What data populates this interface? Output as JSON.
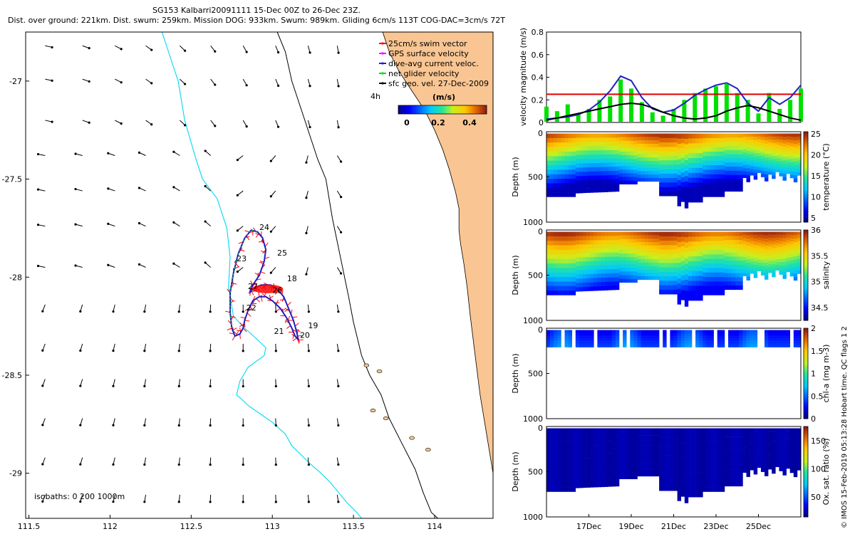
{
  "header": {
    "title1": "SG153 Kalbarri20091111 15-Dec 00Z to 26-Dec 23Z.",
    "title2": "Dist. over ground: 221km. Dist. swum: 259km. Mission DOG: 933km. Swum: 989km. Gliding 6cm/s 113T COG-DAC=3cm/s 72T"
  },
  "credit": "© IMOS 15-Feb-2019 05:13:28 Hobart time. QC flags 1  2",
  "colors": {
    "land": "#f9c592",
    "coast": "#000000",
    "isobath": "#00d8f0",
    "track": "#2020c0",
    "swim_vector": "#ff0000",
    "net_velocity": "#00e000",
    "gps": "#ff00ff",
    "sfc_geo": "#000000",
    "threshold": "#e00000"
  },
  "chart_data": [
    {
      "id": "map",
      "type": "scatter",
      "title": "",
      "xlim": [
        111.48,
        114.36
      ],
      "ylim": [
        -29.23,
        -26.75
      ],
      "xticks": [
        "111.5",
        "112",
        "112.5",
        "113",
        "113.5",
        "114"
      ],
      "yticks": [
        "-27",
        "-27.5",
        "-28",
        "-28.5",
        "-29"
      ],
      "legend": {
        "placement": "top-right",
        "entries": [
          "25cm/s swim vector",
          "GPS surface velocity",
          "dive-avg current veloc.",
          "net glider velocity",
          "sfc geo. vel. 27-Dec-2009"
        ],
        "colorbar_title": "(m/s)",
        "colorbar_ticks": [
          "0",
          "0.2",
          "0.4"
        ],
        "time_label": "4h"
      },
      "isobath_label": "isobaths: 0   200  1000m",
      "day_labels": [
        {
          "text": "24",
          "lon": 112.92,
          "lat": -27.76
        },
        {
          "text": "23",
          "lon": 112.78,
          "lat": -27.92
        },
        {
          "text": "25",
          "lon": 113.03,
          "lat": -27.89
        },
        {
          "text": "18",
          "lon": 113.09,
          "lat": -28.02
        },
        {
          "text": "27",
          "lon": 112.85,
          "lat": -28.06
        },
        {
          "text": "26",
          "lon": 113.0,
          "lat": -28.08
        },
        {
          "text": "22",
          "lon": 112.84,
          "lat": -28.17
        },
        {
          "text": "19",
          "lon": 113.22,
          "lat": -28.26
        },
        {
          "text": "21",
          "lon": 113.01,
          "lat": -28.29
        },
        {
          "text": "20",
          "lon": 113.17,
          "lat": -28.31
        }
      ],
      "track": {
        "lon": [
          113.16,
          113.14,
          113.12,
          113.09,
          113.05,
          113.0,
          112.96,
          112.92,
          112.88,
          112.85,
          112.83,
          112.82,
          112.8,
          112.77,
          112.75,
          112.74,
          112.74,
          112.76,
          112.79,
          112.83,
          112.87,
          112.91,
          112.94,
          112.96,
          112.95,
          112.92,
          112.88,
          112.86,
          112.88,
          112.93,
          112.99,
          113.03,
          113.07,
          113.1,
          113.13,
          113.15,
          113.16
        ],
        "lat": [
          -28.32,
          -28.3,
          -28.26,
          -28.21,
          -28.16,
          -28.12,
          -28.1,
          -28.1,
          -28.12,
          -28.17,
          -28.22,
          -28.26,
          -28.29,
          -28.3,
          -28.26,
          -28.18,
          -28.08,
          -27.98,
          -27.88,
          -27.8,
          -27.76,
          -27.77,
          -27.8,
          -27.86,
          -27.92,
          -27.99,
          -28.04,
          -28.08,
          -28.06,
          -28.04,
          -28.04,
          -28.06,
          -28.1,
          -28.16,
          -28.22,
          -28.28,
          -28.32
        ]
      },
      "coastline": {
        "lon": [
          113.68,
          113.72,
          113.78,
          113.86,
          113.94,
          114.0,
          114.05,
          114.09,
          114.13,
          114.15,
          114.15,
          114.16,
          114.18,
          114.2,
          114.22,
          114.25,
          114.28,
          114.32,
          114.36
        ],
        "lat": [
          -26.75,
          -26.85,
          -26.95,
          -27.05,
          -27.15,
          -27.25,
          -27.35,
          -27.45,
          -27.57,
          -27.65,
          -27.76,
          -27.83,
          -27.93,
          -28.05,
          -28.2,
          -28.4,
          -28.6,
          -28.8,
          -29.0
        ]
      },
      "isobath_200": {
        "lon": [
          113.03,
          113.08,
          113.12,
          113.2,
          113.28,
          113.33,
          113.37,
          113.42,
          113.47,
          113.5,
          113.55,
          113.6,
          113.67,
          113.72,
          113.8,
          113.88,
          113.93,
          113.98,
          114.02
        ],
        "lat": [
          -26.75,
          -26.85,
          -27.0,
          -27.2,
          -27.4,
          -27.5,
          -27.7,
          -27.9,
          -28.1,
          -28.23,
          -28.4,
          -28.5,
          -28.6,
          -28.72,
          -28.85,
          -28.98,
          -29.1,
          -29.2,
          -29.23
        ]
      },
      "isobath_1000": {
        "lon": [
          112.32,
          112.36,
          112.42,
          112.46,
          112.53,
          112.57,
          112.66,
          112.72,
          112.74,
          112.73,
          112.76,
          112.83,
          112.91,
          112.96,
          112.95,
          112.85,
          112.8,
          112.78,
          112.86,
          112.93,
          113.0,
          113.08,
          113.12,
          113.17,
          113.23,
          113.3,
          113.36,
          113.41,
          113.46,
          113.52,
          113.55
        ],
        "lat": [
          -26.75,
          -26.85,
          -27.0,
          -27.2,
          -27.4,
          -27.5,
          -27.6,
          -27.75,
          -27.9,
          -28.05,
          -28.2,
          -28.26,
          -28.32,
          -28.36,
          -28.4,
          -28.46,
          -28.53,
          -28.6,
          -28.66,
          -28.7,
          -28.74,
          -28.8,
          -28.86,
          -28.9,
          -28.95,
          -29.0,
          -29.05,
          -29.1,
          -29.15,
          -29.2,
          -29.23
        ]
      }
    },
    {
      "id": "velocity",
      "type": "line",
      "ylabel": "velocity magnitude (m/s)",
      "ylim": [
        0,
        0.8
      ],
      "yticks": [
        "0",
        "0.2",
        "0.4",
        "0.6",
        "0.8"
      ],
      "threshold": 0.25,
      "x": [
        15,
        15.5,
        16,
        16.5,
        17,
        17.5,
        18,
        18.5,
        19,
        19.5,
        20,
        20.5,
        21,
        21.5,
        22,
        22.5,
        23,
        23.5,
        24,
        24.5,
        25,
        25.5,
        26,
        26.5,
        27
      ],
      "series": [
        {
          "name": "dive-avg current veloc.",
          "values": [
            0.03,
            0.04,
            0.05,
            0.07,
            0.11,
            0.18,
            0.28,
            0.41,
            0.37,
            0.22,
            0.12,
            0.09,
            0.11,
            0.17,
            0.24,
            0.29,
            0.33,
            0.35,
            0.3,
            0.17,
            0.1,
            0.22,
            0.16,
            0.22,
            0.33
          ]
        },
        {
          "name": "net glider velocity",
          "values": [
            0.14,
            0.1,
            0.16,
            0.08,
            0.12,
            0.2,
            0.23,
            0.38,
            0.3,
            0.18,
            0.09,
            0.06,
            0.12,
            0.2,
            0.26,
            0.3,
            0.32,
            0.34,
            0.26,
            0.2,
            0.08,
            0.26,
            0.12,
            0.2,
            0.3
          ]
        },
        {
          "name": "sfc geo. vel. 27-Dec-2009",
          "values": [
            0.02,
            0.04,
            0.06,
            0.08,
            0.1,
            0.12,
            0.14,
            0.16,
            0.17,
            0.16,
            0.13,
            0.09,
            0.06,
            0.04,
            0.03,
            0.04,
            0.06,
            0.1,
            0.13,
            0.15,
            0.13,
            0.1,
            0.07,
            0.04,
            0.02
          ]
        }
      ]
    },
    {
      "id": "temperature",
      "type": "heatmap",
      "ylabel": "Depth (m)",
      "colorbar_label": "temperature (°C)",
      "ylim": [
        1000,
        0
      ],
      "yticks": [
        "0",
        "500",
        "1000"
      ],
      "clim": [
        4,
        25.5
      ],
      "colorbar_ticks": [
        "5",
        "10",
        "15",
        "20",
        "25"
      ],
      "surface_value": 23,
      "deep_value": 5
    },
    {
      "id": "salinity",
      "type": "heatmap",
      "ylabel": "Depth (m)",
      "colorbar_label": "salinity",
      "ylim": [
        1000,
        0
      ],
      "yticks": [
        "0",
        "500",
        "1000"
      ],
      "clim": [
        34.25,
        36
      ],
      "colorbar_ticks": [
        "34.5",
        "35",
        "35.5",
        "36"
      ],
      "surface_value": 35.85,
      "deep_value": 34.45
    },
    {
      "id": "chla",
      "type": "heatmap",
      "ylabel": "Depth (m)",
      "colorbar_label": "chl-a (mg m-3)",
      "ylim": [
        1000,
        0
      ],
      "yticks": [
        "0",
        "500",
        "1000"
      ],
      "clim": [
        0,
        2
      ],
      "colorbar_ticks": [
        "0",
        "0.5",
        "1",
        "1.5",
        "2"
      ],
      "surface_value": 0.2,
      "deep_value": 0.4
    },
    {
      "id": "oxygen",
      "type": "heatmap",
      "ylabel": "Depth (m)",
      "colorbar_label": "Ox. sat. ratio (%)",
      "ylim": [
        1000,
        0
      ],
      "yticks": [
        "0",
        "500",
        "1000"
      ],
      "clim": [
        15,
        175
      ],
      "colorbar_ticks": [
        "50",
        "100",
        "150"
      ],
      "surface_value": 20,
      "deep_value": 20
    }
  ],
  "time_axis": {
    "xlim": [
      15,
      27
    ],
    "ticks": [
      "17Dec",
      "19Dec",
      "21Dec",
      "23Dec",
      "25Dec"
    ],
    "tick_values": [
      17,
      19,
      21,
      23,
      25
    ]
  }
}
